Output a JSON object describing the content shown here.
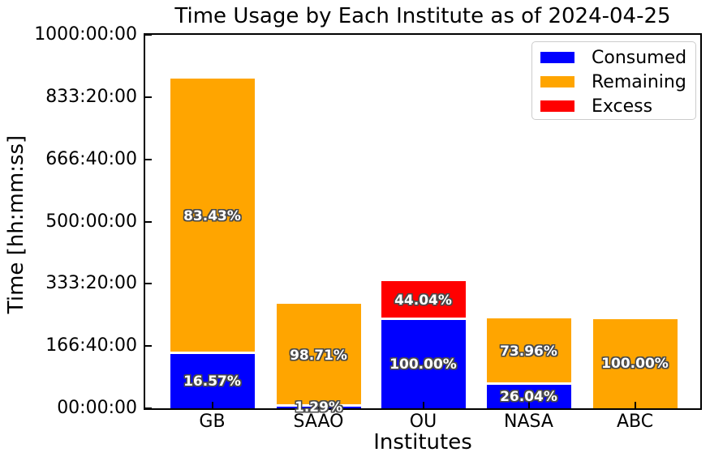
{
  "chart_data": {
    "type": "bar",
    "stacked": true,
    "title": "Time Usage by Each Institute as of 2024-04-25",
    "xlabel": "Institutes",
    "ylabel": "Time [hh:mm:ss]",
    "categories": [
      "GB",
      "SAAO",
      "OU",
      "NASA",
      "ABC"
    ],
    "series": [
      {
        "name": "Consumed",
        "color": "#0000ff",
        "values_hours": [
          146.4,
          3.6,
          237.5,
          62.3,
          0
        ],
        "labels": [
          "16.57%",
          "1.29%",
          "100.00%",
          "26.04%",
          ""
        ]
      },
      {
        "name": "Remaining",
        "color": "#ffa500",
        "values_hours": [
          737.0,
          275.3,
          0,
          176.9,
          239.2
        ],
        "labels": [
          "83.43%",
          "98.71%",
          "",
          "73.96%",
          "100.00%"
        ]
      },
      {
        "name": "Excess",
        "color": "#ff0000",
        "values_hours": [
          0,
          0,
          104.6,
          0,
          0
        ],
        "labels": [
          "",
          "",
          "44.04%",
          "",
          ""
        ]
      }
    ],
    "y_axis": {
      "tick_labels": [
        "00:00:00",
        "166:40:00",
        "333:20:00",
        "500:00:00",
        "666:40:00",
        "833:20:00",
        "1000:00:00"
      ],
      "tick_hours": [
        0,
        166.6667,
        333.3333,
        500,
        666.6667,
        833.3333,
        1000
      ],
      "ylim_hours": [
        0,
        1000
      ]
    },
    "legend": {
      "location": "upper right",
      "entries": [
        {
          "label": "Consumed",
          "color": "#0000ff"
        },
        {
          "label": "Remaining",
          "color": "#ffa500"
        },
        {
          "label": "Excess",
          "color": "#ff0000"
        }
      ]
    },
    "grid": false,
    "bar_label_style": {
      "color": "#ffffff",
      "outline": "#4a4a4a",
      "bold": true
    }
  }
}
